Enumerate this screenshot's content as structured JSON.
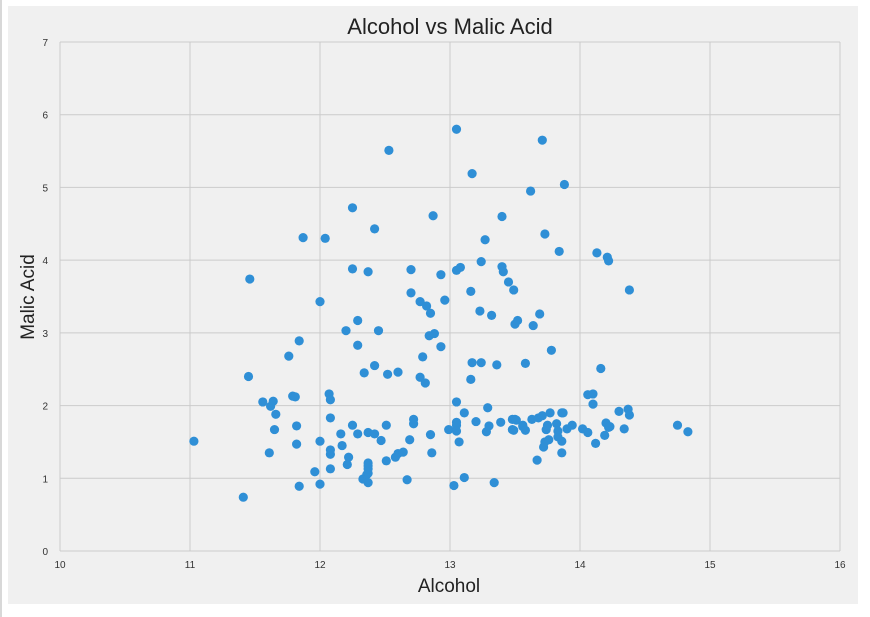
{
  "colors": {
    "background": "#ffffff",
    "plot_background": "#f0f0f0",
    "grid": "#cbcbcb",
    "marker": "#2f8fd6"
  },
  "chart_data": {
    "type": "scatter",
    "title": "Alcohol vs Malic Acid",
    "xlabel": "Alcohol",
    "ylabel": "Malic Acid",
    "xlim": [
      10,
      16
    ],
    "ylim": [
      0,
      7
    ],
    "xticks": [
      10,
      11,
      12,
      13,
      14,
      15,
      16
    ],
    "yticks": [
      0,
      1,
      2,
      3,
      4,
      5,
      6,
      7
    ],
    "grid": true,
    "series": [
      {
        "points": [
          [
            11.03,
            1.51
          ],
          [
            11.41,
            0.74
          ],
          [
            11.45,
            2.4
          ],
          [
            11.46,
            3.74
          ],
          [
            11.56,
            2.05
          ],
          [
            11.61,
            1.35
          ],
          [
            11.62,
            1.99
          ],
          [
            11.64,
            2.06
          ],
          [
            11.65,
            1.67
          ],
          [
            11.66,
            1.88
          ],
          [
            11.76,
            2.68
          ],
          [
            11.79,
            2.13
          ],
          [
            11.81,
            2.12
          ],
          [
            11.82,
            1.72
          ],
          [
            11.82,
            1.47
          ],
          [
            11.84,
            0.89
          ],
          [
            11.84,
            2.89
          ],
          [
            11.87,
            4.31
          ],
          [
            11.96,
            1.09
          ],
          [
            12.0,
            0.92
          ],
          [
            12.0,
            1.51
          ],
          [
            12.0,
            3.43
          ],
          [
            12.04,
            4.3
          ],
          [
            12.07,
            2.16
          ],
          [
            12.08,
            1.13
          ],
          [
            12.08,
            1.33
          ],
          [
            12.08,
            1.39
          ],
          [
            12.08,
            1.83
          ],
          [
            12.08,
            2.08
          ],
          [
            12.16,
            1.61
          ],
          [
            12.17,
            1.45
          ],
          [
            12.2,
            3.03
          ],
          [
            12.21,
            1.19
          ],
          [
            12.22,
            1.29
          ],
          [
            12.25,
            1.73
          ],
          [
            12.25,
            3.88
          ],
          [
            12.25,
            4.72
          ],
          [
            12.29,
            1.61
          ],
          [
            12.29,
            2.83
          ],
          [
            12.29,
            3.17
          ],
          [
            12.33,
            0.99
          ],
          [
            12.34,
            2.45
          ],
          [
            12.36,
            1.05
          ],
          [
            12.37,
            0.94
          ],
          [
            12.37,
            1.07
          ],
          [
            12.37,
            1.13
          ],
          [
            12.37,
            1.17
          ],
          [
            12.37,
            1.21
          ],
          [
            12.37,
            1.63
          ],
          [
            12.37,
            3.84
          ],
          [
            12.42,
            1.61
          ],
          [
            12.42,
            2.55
          ],
          [
            12.42,
            4.43
          ],
          [
            12.45,
            3.03
          ],
          [
            12.47,
            1.52
          ],
          [
            12.51,
            1.24
          ],
          [
            12.51,
            1.73
          ],
          [
            12.52,
            2.43
          ],
          [
            12.53,
            5.51
          ],
          [
            12.58,
            1.29
          ],
          [
            12.6,
            1.34
          ],
          [
            12.6,
            2.46
          ],
          [
            12.64,
            1.36
          ],
          [
            12.67,
            0.98
          ],
          [
            12.69,
            1.53
          ],
          [
            12.7,
            3.55
          ],
          [
            12.7,
            3.87
          ],
          [
            12.72,
            1.75
          ],
          [
            12.72,
            1.81
          ],
          [
            12.77,
            2.39
          ],
          [
            12.77,
            3.43
          ],
          [
            12.79,
            2.67
          ],
          [
            12.81,
            2.31
          ],
          [
            12.82,
            3.37
          ],
          [
            12.84,
            2.96
          ],
          [
            12.85,
            1.6
          ],
          [
            12.85,
            3.27
          ],
          [
            12.86,
            1.35
          ],
          [
            12.87,
            4.61
          ],
          [
            12.88,
            2.99
          ],
          [
            12.93,
            2.81
          ],
          [
            12.93,
            3.8
          ],
          [
            12.96,
            3.45
          ],
          [
            12.99,
            1.67
          ],
          [
            13.03,
            0.9
          ],
          [
            13.05,
            1.65
          ],
          [
            13.05,
            1.73
          ],
          [
            13.05,
            1.77
          ],
          [
            13.05,
            2.05
          ],
          [
            13.05,
            3.86
          ],
          [
            13.05,
            5.8
          ],
          [
            13.07,
            1.5
          ],
          [
            13.08,
            3.9
          ],
          [
            13.11,
            1.01
          ],
          [
            13.11,
            1.9
          ],
          [
            13.16,
            2.36
          ],
          [
            13.16,
            3.57
          ],
          [
            13.17,
            2.59
          ],
          [
            13.17,
            5.19
          ],
          [
            13.2,
            1.78
          ],
          [
            13.23,
            3.3
          ],
          [
            13.24,
            2.59
          ],
          [
            13.24,
            3.98
          ],
          [
            13.27,
            4.28
          ],
          [
            13.28,
            1.64
          ],
          [
            13.29,
            1.97
          ],
          [
            13.3,
            1.72
          ],
          [
            13.32,
            3.24
          ],
          [
            13.34,
            0.94
          ],
          [
            13.36,
            2.56
          ],
          [
            13.39,
            1.77
          ],
          [
            13.4,
            3.91
          ],
          [
            13.4,
            4.6
          ],
          [
            13.41,
            3.84
          ],
          [
            13.45,
            3.7
          ],
          [
            13.48,
            1.67
          ],
          [
            13.48,
            1.81
          ],
          [
            13.49,
            1.66
          ],
          [
            13.49,
            3.59
          ],
          [
            13.5,
            1.81
          ],
          [
            13.5,
            3.12
          ],
          [
            13.51,
            1.8
          ],
          [
            13.52,
            3.17
          ],
          [
            13.56,
            1.71
          ],
          [
            13.56,
            1.73
          ],
          [
            13.58,
            1.66
          ],
          [
            13.58,
            2.58
          ],
          [
            13.62,
            4.95
          ],
          [
            13.63,
            1.81
          ],
          [
            13.64,
            3.1
          ],
          [
            13.67,
            1.25
          ],
          [
            13.68,
            1.83
          ],
          [
            13.69,
            3.26
          ],
          [
            13.71,
            1.86
          ],
          [
            13.71,
            5.65
          ],
          [
            13.72,
            1.43
          ],
          [
            13.73,
            1.5
          ],
          [
            13.73,
            4.36
          ],
          [
            13.74,
            1.67
          ],
          [
            13.75,
            1.73
          ],
          [
            13.76,
            1.53
          ],
          [
            13.77,
            1.9
          ],
          [
            13.78,
            2.76
          ],
          [
            13.82,
            1.75
          ],
          [
            13.83,
            1.57
          ],
          [
            13.83,
            1.65
          ],
          [
            13.84,
            4.12
          ],
          [
            13.86,
            1.35
          ],
          [
            13.86,
            1.51
          ],
          [
            13.86,
            1.9
          ],
          [
            13.87,
            1.9
          ],
          [
            13.88,
            5.04
          ],
          [
            13.9,
            1.68
          ],
          [
            13.94,
            1.73
          ],
          [
            14.02,
            1.68
          ],
          [
            14.06,
            1.63
          ],
          [
            14.06,
            2.15
          ],
          [
            14.1,
            2.02
          ],
          [
            14.1,
            2.16
          ],
          [
            14.12,
            1.48
          ],
          [
            14.13,
            4.1
          ],
          [
            14.16,
            2.51
          ],
          [
            14.19,
            1.59
          ],
          [
            14.2,
            1.76
          ],
          [
            14.21,
            4.04
          ],
          [
            14.22,
            1.7
          ],
          [
            14.22,
            3.99
          ],
          [
            14.23,
            1.71
          ],
          [
            14.3,
            1.92
          ],
          [
            14.34,
            1.68
          ],
          [
            14.37,
            1.95
          ],
          [
            14.38,
            1.87
          ],
          [
            14.38,
            3.59
          ],
          [
            14.75,
            1.73
          ],
          [
            14.83,
            1.64
          ]
        ]
      }
    ]
  }
}
